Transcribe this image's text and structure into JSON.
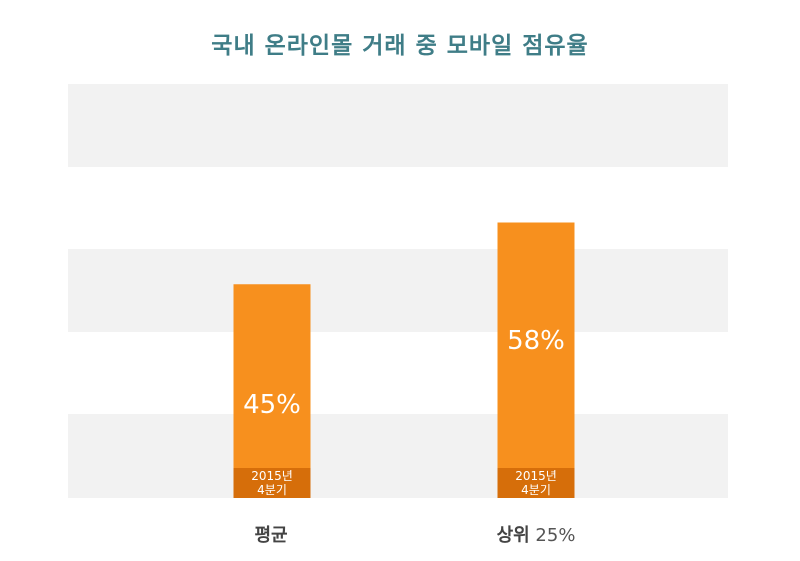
{
  "title": "국내 온라인몰 거래 중 모바일 점유율",
  "colors": {
    "bar": "#f7901e",
    "bar_base": "#d66e0a",
    "band": "#f2f2f2",
    "title": "#3f7d87"
  },
  "chart_data": {
    "type": "bar",
    "title": "국내 온라인몰 거래 중 모바일 점유율",
    "categories": [
      "평균",
      "상위"
    ],
    "category_suffix": [
      "",
      "25%"
    ],
    "values": [
      45,
      58
    ],
    "value_labels": [
      "45%",
      "58%"
    ],
    "base_label": [
      "2015년",
      "4분기"
    ],
    "ylim": [
      0,
      70
    ],
    "grid": "alternating bands",
    "legend": "none"
  }
}
